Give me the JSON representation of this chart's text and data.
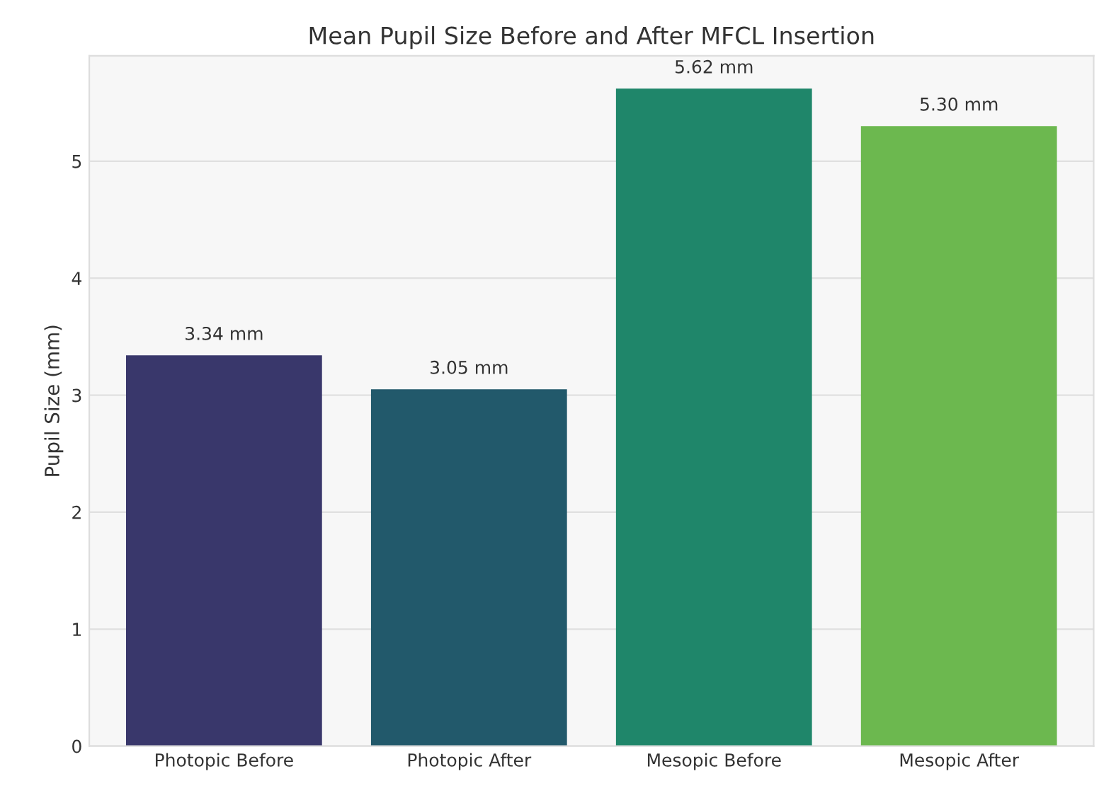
{
  "chart_data": {
    "type": "bar",
    "title": "Mean Pupil Size Before and After MFCL Insertion",
    "ylabel": "Pupil Size (mm)",
    "categories": [
      "Photopic Before",
      "Photopic After",
      "Mesopic Before",
      "Mesopic After"
    ],
    "values": [
      3.34,
      3.05,
      5.62,
      5.3
    ],
    "colors": [
      "#39376b",
      "#22596b",
      "#1f866a",
      "#6cb84f"
    ],
    "value_labels": [
      "3.34 mm",
      "3.05 mm",
      "5.62 mm",
      "5.30 mm"
    ],
    "ylim": [
      0,
      5.9
    ],
    "yticks": [
      0,
      1,
      2,
      3,
      4,
      5
    ],
    "grid": "y"
  }
}
